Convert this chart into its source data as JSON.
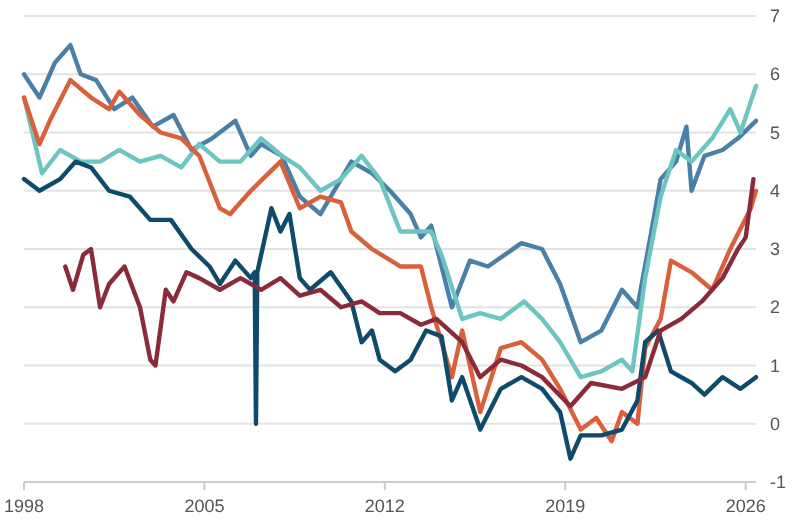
{
  "chart_data": {
    "type": "line",
    "xlim": [
      1998,
      2026.4
    ],
    "xticks": [
      1998,
      2005,
      2012,
      2019,
      2026
    ],
    "ylim": [
      -1,
      7
    ],
    "yticks": [
      -1,
      0,
      1,
      2,
      3,
      4,
      5,
      6,
      7
    ],
    "grid": "y",
    "line_style": "solid",
    "marker": "none",
    "series": [
      {
        "color": "#4a7fa8",
        "x": [
          1998,
          1998.6,
          1999.2,
          1999.8,
          2000.2,
          2000.8,
          2001.5,
          2002.2,
          2003,
          2003.8,
          2004.5,
          2005.3,
          2006.2,
          2006.8,
          2007.2,
          2008,
          2008.7,
          2009.5,
          2010.7,
          2011.5,
          2012.2,
          2013,
          2013.4,
          2013.8,
          2014.6,
          2015.3,
          2016,
          2017.3,
          2018.1,
          2018.8,
          2019.6,
          2020.4,
          2021.2,
          2021.8,
          2022.3,
          2022.7,
          2023.3,
          2023.7,
          2023.9,
          2024.4,
          2025.1,
          2025.7,
          2026.4
        ],
        "values": [
          6.0,
          5.6,
          6.2,
          6.5,
          6.0,
          5.9,
          5.4,
          5.6,
          5.1,
          5.3,
          4.7,
          4.9,
          5.2,
          4.6,
          4.8,
          4.6,
          3.9,
          3.6,
          4.5,
          4.3,
          4.0,
          3.6,
          3.2,
          3.4,
          2.0,
          2.8,
          2.7,
          3.1,
          3.0,
          2.4,
          1.4,
          1.6,
          2.3,
          2.0,
          3.2,
          4.2,
          4.5,
          5.1,
          4.0,
          4.6,
          4.7,
          4.9,
          5.2
        ]
      },
      {
        "color": "#6cc5c0",
        "x": [
          1998,
          1998.7,
          1999.4,
          2000.2,
          2000.95,
          2001.7,
          2002.5,
          2003.3,
          2004.1,
          2004.8,
          2005.6,
          2006.4,
          2007.2,
          2008,
          2008.7,
          2009.5,
          2010.3,
          2011.1,
          2011.8,
          2012.6,
          2013.8,
          2014.2,
          2015,
          2015.7,
          2016.5,
          2017.4,
          2018.1,
          2018.8,
          2019.6,
          2020.4,
          2021.2,
          2021.6,
          2022.1,
          2022.7,
          2023.3,
          2023.9,
          2024.7,
          2025.4,
          2025.8,
          2026.4
        ],
        "values": [
          5.6,
          4.3,
          4.7,
          4.5,
          4.5,
          4.7,
          4.5,
          4.6,
          4.4,
          4.8,
          4.5,
          4.5,
          4.9,
          4.6,
          4.4,
          4.0,
          4.2,
          4.6,
          4.2,
          3.3,
          3.3,
          2.9,
          1.8,
          1.9,
          1.8,
          2.1,
          1.8,
          1.4,
          0.8,
          0.9,
          1.1,
          0.9,
          2.5,
          3.9,
          4.7,
          4.5,
          4.9,
          5.4,
          5.0,
          5.8
        ]
      },
      {
        "color": "#d9603b",
        "x": [
          1998,
          1998.6,
          1999,
          1999.8,
          2000.6,
          2001.3,
          2001.7,
          2002.5,
          2003.3,
          2004.1,
          2004.8,
          2005.6,
          2006,
          2006.8,
          2007.95,
          2008.7,
          2009.5,
          2010.3,
          2010.7,
          2011.5,
          2012.6,
          2013.4,
          2013.8,
          2014.6,
          2015,
          2015.7,
          2016.5,
          2017.3,
          2018.1,
          2018.8,
          2019.6,
          2020.2,
          2020.8,
          2021.2,
          2021.8,
          2022.1,
          2022.7,
          2023.1,
          2023.9,
          2024.7,
          2025.4,
          2026.2,
          2026.4
        ],
        "values": [
          5.6,
          4.8,
          5.2,
          5.9,
          5.6,
          5.4,
          5.7,
          5.3,
          5.0,
          4.9,
          4.6,
          3.7,
          3.6,
          4.0,
          4.5,
          3.7,
          3.9,
          3.8,
          3.3,
          3.0,
          2.7,
          2.7,
          2.0,
          0.8,
          1.6,
          0.2,
          1.3,
          1.4,
          1.1,
          0.6,
          -0.1,
          0.1,
          -0.3,
          0.2,
          0.0,
          1.3,
          1.8,
          2.8,
          2.6,
          2.3,
          3.0,
          3.7,
          4.0
        ]
      },
      {
        "color": "#0d4a6b",
        "x": [
          1998,
          1998.6,
          1999.4,
          2000.0,
          2000.6,
          2001.3,
          2002.1,
          2002.9,
          2003.7,
          2004.5,
          2005.2,
          2005.6,
          2006.2,
          2006.8,
          2006.95,
          2007.0,
          2007.05,
          2007.6,
          2007.95,
          2008.3,
          2008.7,
          2009.1,
          2009.9,
          2010.7,
          2011.1,
          2011.5,
          2011.8,
          2012.4,
          2013.0,
          2013.6,
          2014.2,
          2014.6,
          2015.0,
          2015.7,
          2016.5,
          2017.3,
          2018.1,
          2018.8,
          2019.2,
          2019.6,
          2020.4,
          2021.2,
          2021.8,
          2022.1,
          2022.6,
          2023.1,
          2023.9,
          2024.4,
          2025.1,
          2025.8,
          2026.4
        ],
        "values": [
          4.2,
          4.0,
          4.2,
          4.5,
          4.4,
          4.0,
          3.9,
          3.5,
          3.5,
          3.0,
          2.7,
          2.4,
          2.8,
          2.5,
          2.6,
          0.0,
          2.6,
          3.7,
          3.3,
          3.6,
          2.5,
          2.3,
          2.6,
          2.1,
          1.4,
          1.6,
          1.1,
          0.9,
          1.1,
          1.6,
          1.5,
          0.4,
          0.8,
          -0.1,
          0.6,
          0.8,
          0.6,
          0.2,
          -0.6,
          -0.2,
          -0.2,
          -0.1,
          0.4,
          1.4,
          1.6,
          0.9,
          0.7,
          0.5,
          0.8,
          0.6,
          0.8
        ]
      },
      {
        "color": "#8b2a3a",
        "x": [
          1999.6,
          1999.9,
          2000.3,
          2000.6,
          2000.95,
          2001.3,
          2001.9,
          2002.5,
          2002.9,
          2003.1,
          2003.5,
          2003.8,
          2004.3,
          2004.8,
          2005.6,
          2006.4,
          2007.2,
          2007.95,
          2008.7,
          2009.5,
          2010.3,
          2011.1,
          2011.8,
          2012.6,
          2013.4,
          2014.0,
          2015.0,
          2015.7,
          2016.5,
          2017.3,
          2018.1,
          2019.2,
          2020.0,
          2021.2,
          2022.1,
          2022.7,
          2023.5,
          2024.3,
          2025.1,
          2025.7,
          2026.0,
          2026.3
        ],
        "values": [
          2.7,
          2.3,
          2.9,
          3.0,
          2.0,
          2.4,
          2.7,
          2.0,
          1.1,
          1.0,
          2.3,
          2.1,
          2.6,
          2.5,
          2.3,
          2.5,
          2.3,
          2.5,
          2.2,
          2.3,
          2.0,
          2.1,
          1.9,
          1.9,
          1.7,
          1.8,
          1.4,
          0.8,
          1.1,
          1.0,
          0.8,
          0.3,
          0.7,
          0.6,
          0.8,
          1.6,
          1.8,
          2.1,
          2.5,
          3.0,
          3.2,
          4.2
        ]
      }
    ]
  }
}
